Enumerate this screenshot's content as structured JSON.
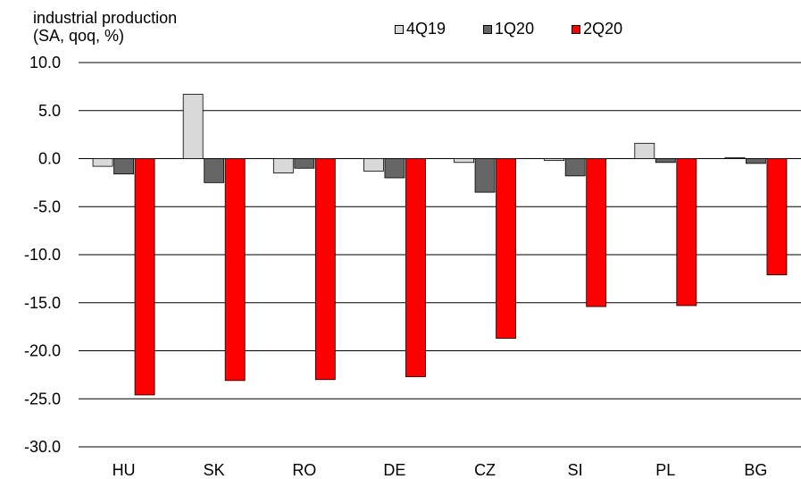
{
  "chart_data": {
    "type": "bar",
    "ylabel_lines": [
      "industrial production",
      "(SA, qoq, %)"
    ],
    "categories": [
      "HU",
      "SK",
      "RO",
      "DE",
      "CZ",
      "SI",
      "PL",
      "BG"
    ],
    "series": [
      {
        "name": "4Q19",
        "color": "#d9d9d9",
        "values": [
          -0.8,
          6.7,
          -1.5,
          -1.3,
          -0.4,
          -0.2,
          1.6,
          0.1
        ]
      },
      {
        "name": "1Q20",
        "color": "#666666",
        "values": [
          -1.6,
          -2.5,
          -1.0,
          -2.0,
          -3.5,
          -1.8,
          -0.4,
          -0.5
        ]
      },
      {
        "name": "2Q20",
        "color": "#ff0000",
        "values": [
          -24.6,
          -23.1,
          -23.0,
          -22.7,
          -18.7,
          -15.4,
          -15.3,
          -12.1
        ]
      }
    ],
    "ylim": [
      -30,
      10
    ],
    "yticks": [
      "10.0",
      "5.0",
      "0.0",
      "-5.0",
      "-10.0",
      "-15.0",
      "-20.0",
      "-25.0",
      "-30.0"
    ],
    "grid": true,
    "legend_position": "top"
  }
}
